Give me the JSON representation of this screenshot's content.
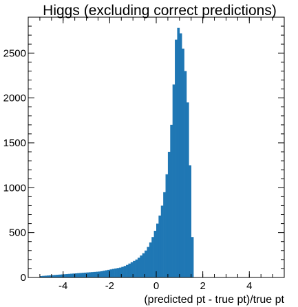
{
  "chart_data": {
    "type": "bar",
    "title": "Higgs (excluding correct predictions)",
    "xlabel": "(predicted pt - true pt)/true pt",
    "ylabel": "",
    "xlim": [
      -5.5,
      5.5
    ],
    "ylim": [
      0,
      2900
    ],
    "bin_width": 0.1,
    "bin_start": -5.0,
    "color": "#1f77b4",
    "xticks": [
      -4,
      -2,
      0,
      2,
      4
    ],
    "xtick_labels": [
      "-4",
      "-2",
      "0",
      "2",
      "4"
    ],
    "yticks": [
      0,
      500,
      1000,
      1500,
      2000,
      2500
    ],
    "ytick_labels": [
      "0",
      "500",
      "1000",
      "1500",
      "2000",
      "2500"
    ],
    "grid": false,
    "values": [
      15,
      18,
      20,
      22,
      24,
      26,
      28,
      30,
      32,
      34,
      36,
      38,
      40,
      42,
      44,
      46,
      48,
      50,
      52,
      54,
      56,
      58,
      60,
      62,
      64,
      66,
      70,
      75,
      80,
      85,
      90,
      95,
      100,
      105,
      110,
      118,
      128,
      140,
      155,
      170,
      185,
      200,
      220,
      245,
      270,
      300,
      340,
      390,
      450,
      520,
      600,
      690,
      800,
      950,
      1150,
      1400,
      1700,
      2150,
      2650,
      2780,
      2720,
      2550,
      2300,
      1950,
      1250,
      450,
      0,
      0,
      0,
      0,
      0,
      0,
      0,
      0,
      0,
      0,
      0,
      0,
      0,
      0,
      0,
      0,
      0,
      0,
      0,
      0,
      0,
      0,
      0,
      0,
      0,
      0,
      0,
      0,
      0,
      0,
      0,
      0,
      0,
      0
    ]
  }
}
